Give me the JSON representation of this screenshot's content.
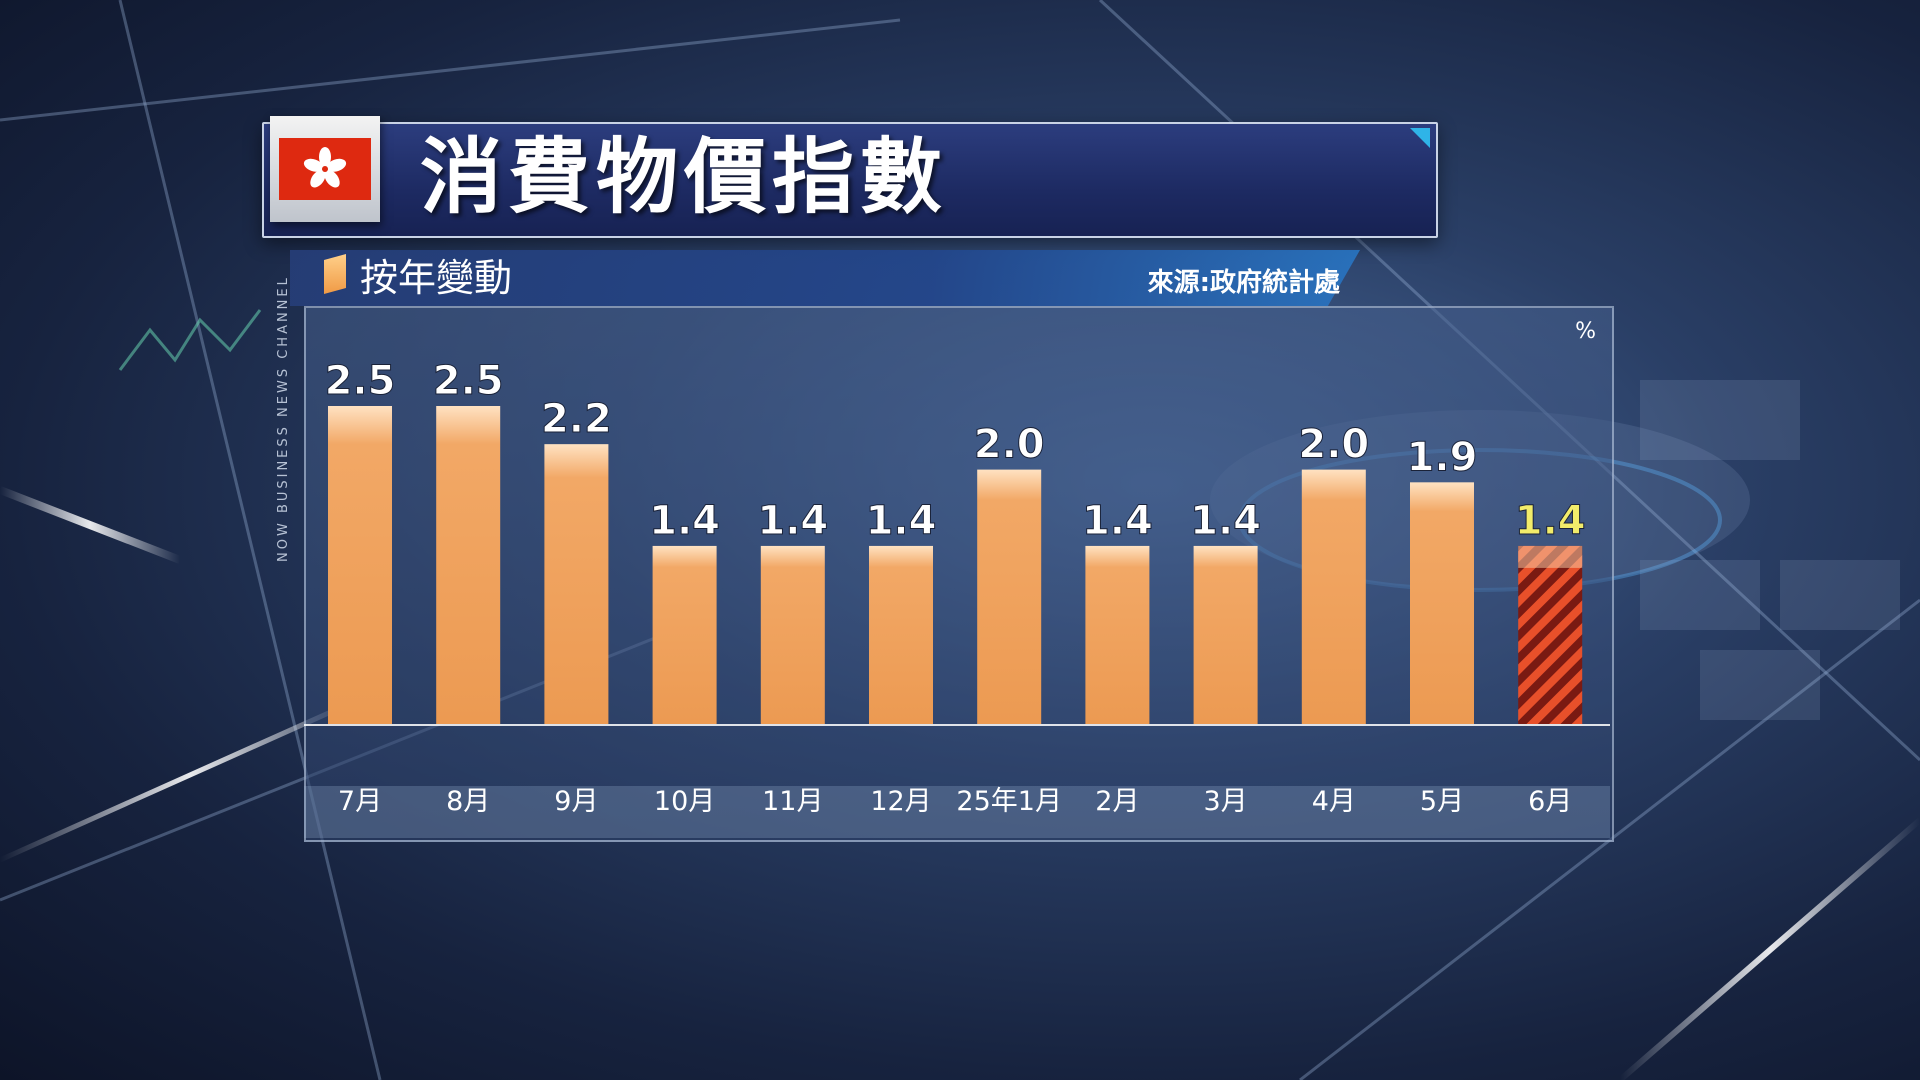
{
  "header": {
    "title": "消費物價指數",
    "subtitle": "按年變動",
    "source": "來源:政府統計處"
  },
  "watermark": "NOW BUSINESS NEWS CHANNEL",
  "colors": {
    "bar": "#f0a05a",
    "highlight_bar_stripe_a": "#e8502a",
    "highlight_bar_stripe_b": "#7a1a12",
    "label": "#ffffff",
    "highlight_label": "#f2ec6a",
    "flag_red": "#de2910"
  },
  "icons": {
    "flag": "hong-kong-flag-icon"
  },
  "chart_data": {
    "type": "bar",
    "unit": "%",
    "categories": [
      "7月",
      "8月",
      "9月",
      "10月",
      "11月",
      "12月",
      "25年1月",
      "2月",
      "3月",
      "4月",
      "5月",
      "6月"
    ],
    "values": [
      2.5,
      2.5,
      2.2,
      1.4,
      1.4,
      1.4,
      2.0,
      1.4,
      1.4,
      2.0,
      1.9,
      1.4
    ],
    "value_labels": [
      "2.5",
      "2.5",
      "2.2",
      "1.4",
      "1.4",
      "1.4",
      "2.0",
      "1.4",
      "1.4",
      "2.0",
      "1.9",
      "1.4"
    ],
    "highlight_index": 11,
    "ylim": [
      0,
      2.5
    ],
    "grid": false
  }
}
